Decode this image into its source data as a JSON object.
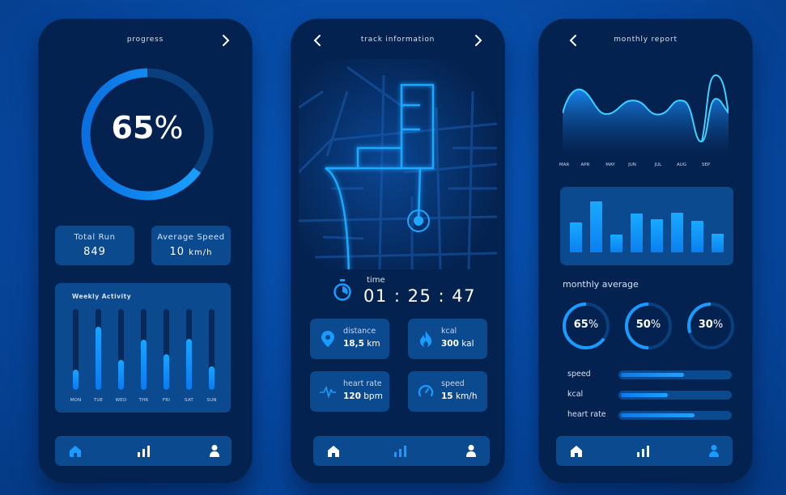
{
  "colors": {
    "accent": "#1aa4ff",
    "phone_bg": "#04224f",
    "card_bg": "#0b4a8f",
    "page_bg": "#0648a0"
  },
  "screens": [
    {
      "title": "progress",
      "nav_right_icon": "chevron-right-icon",
      "progress": {
        "value": 65,
        "label": "65",
        "unit": "%"
      },
      "stats": [
        {
          "label": "Total Run",
          "value": "849",
          "unit": ""
        },
        {
          "label": "Average Speed",
          "value": "10",
          "unit": "km/h"
        }
      ],
      "weekly_activity": {
        "title": "Weekly Activity",
        "days": [
          "MON",
          "TUE",
          "WED",
          "THR",
          "FRI",
          "SAT",
          "SUN"
        ],
        "values": [
          25,
          78,
          37,
          62,
          44,
          63,
          29
        ]
      },
      "bottom_nav": {
        "active": "home",
        "items": [
          "home-icon",
          "stats-icon",
          "profile-icon"
        ]
      }
    },
    {
      "title": "track information",
      "nav_left_icon": "chevron-left-icon",
      "nav_right_icon": "chevron-right-icon",
      "time": {
        "label": "time",
        "value": "01 : 25 : 47"
      },
      "metrics": [
        {
          "icon": "location-pin-icon",
          "label": "distance",
          "value": "18,5",
          "unit": "km"
        },
        {
          "icon": "flame-icon",
          "label": "kcal",
          "value": "300",
          "unit": "kal"
        },
        {
          "icon": "heartbeat-icon",
          "label": "heart rate",
          "value": "120",
          "unit": "bpm"
        },
        {
          "icon": "speedometer-icon",
          "label": "speed",
          "value": "15",
          "unit": "km/h"
        }
      ],
      "bottom_nav": {
        "active": "stats",
        "items": [
          "home-icon",
          "stats-icon",
          "profile-icon"
        ]
      }
    },
    {
      "title": "monthly report",
      "nav_left_icon": "chevron-left-icon",
      "months": [
        "MAR",
        "APR",
        "MAY",
        "JUN",
        "JUL",
        "AUG",
        "SEP"
      ],
      "monthly_average": {
        "title": "monthly average",
        "rings": [
          {
            "value": 65,
            "label": "65",
            "unit": "%"
          },
          {
            "value": 50,
            "label": "50",
            "unit": "%"
          },
          {
            "value": 30,
            "label": "30",
            "unit": "%"
          }
        ],
        "bars": [
          {
            "label": "speed",
            "value": 58
          },
          {
            "label": "kcal",
            "value": 43
          },
          {
            "label": "heart rate",
            "value": 68
          }
        ]
      },
      "bottom_nav": {
        "active": "profile",
        "items": [
          "home-icon",
          "stats-icon",
          "profile-icon"
        ]
      }
    }
  ],
  "chart_data": [
    {
      "type": "bar",
      "title": "Weekly Activity",
      "categories": [
        "MON",
        "TUE",
        "WED",
        "THR",
        "FRI",
        "SAT",
        "SUN"
      ],
      "values": [
        25,
        78,
        37,
        62,
        44,
        63,
        29
      ],
      "ylim": [
        0,
        100
      ]
    },
    {
      "type": "area",
      "title": "monthly report",
      "categories": [
        "MAR",
        "APR",
        "MAY",
        "JUN",
        "JUL",
        "AUG",
        "SEP"
      ],
      "values": [
        70,
        40,
        55,
        35,
        55,
        5,
        95
      ],
      "ylim": [
        0,
        100
      ]
    },
    {
      "type": "bar",
      "title": "monthly bars",
      "categories": [
        "1",
        "2",
        "3",
        "4",
        "5",
        "6",
        "7",
        "8"
      ],
      "values": [
        55,
        93,
        33,
        70,
        60,
        72,
        58,
        34
      ],
      "ylim": [
        0,
        100
      ]
    }
  ]
}
